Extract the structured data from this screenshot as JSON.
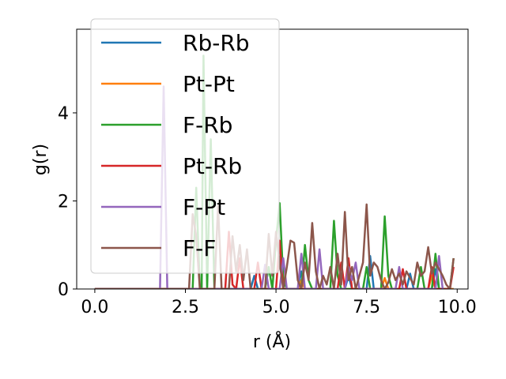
{
  "chart_data": {
    "type": "line",
    "xlabel": "r (Å)",
    "ylabel": "g(r)",
    "xlim": [
      -0.5,
      10.3
    ],
    "ylim": [
      0,
      5.9
    ],
    "xticks": [
      0.0,
      2.5,
      5.0,
      7.5,
      10.0
    ],
    "xtick_labels": [
      "0.0",
      "2.5",
      "5.0",
      "7.5",
      "10.0"
    ],
    "yticks": [
      0,
      2,
      4
    ],
    "ytick_labels": [
      "0",
      "2",
      "4"
    ],
    "grid": false,
    "legend_position": "upper-left",
    "series": [
      {
        "name": "Rb-Rb",
        "color": "#1f77b4",
        "points": [
          [
            0,
            0
          ],
          [
            4.3,
            0
          ],
          [
            4.4,
            0.3
          ],
          [
            4.5,
            0
          ],
          [
            5.6,
            0
          ],
          [
            5.7,
            0.4
          ],
          [
            5.8,
            0
          ],
          [
            6.9,
            0
          ],
          [
            7.0,
            0.3
          ],
          [
            7.1,
            0
          ],
          [
            7.5,
            0
          ],
          [
            7.6,
            0.75
          ],
          [
            7.7,
            0
          ],
          [
            8.6,
            0
          ],
          [
            8.7,
            0.35
          ],
          [
            8.8,
            0
          ],
          [
            9.3,
            0
          ],
          [
            9.4,
            0.45
          ],
          [
            9.5,
            0
          ],
          [
            9.9,
            0
          ]
        ]
      },
      {
        "name": "Pt-Pt",
        "color": "#ff7f0e",
        "points": [
          [
            0,
            0
          ],
          [
            5.6,
            0
          ],
          [
            5.7,
            0.2
          ],
          [
            5.8,
            0
          ],
          [
            7.9,
            0
          ],
          [
            8.0,
            0.25
          ],
          [
            8.1,
            0
          ],
          [
            9.2,
            0
          ],
          [
            9.3,
            0.3
          ],
          [
            9.4,
            0
          ],
          [
            9.9,
            0
          ]
        ]
      },
      {
        "name": "F-Rb",
        "color": "#2ca02c",
        "points": [
          [
            0,
            0
          ],
          [
            2.7,
            0
          ],
          [
            2.8,
            2.3
          ],
          [
            2.9,
            0
          ],
          [
            2.95,
            0
          ],
          [
            3.0,
            5.3
          ],
          [
            3.1,
            0
          ],
          [
            3.2,
            3.4
          ],
          [
            3.3,
            0
          ],
          [
            4.7,
            0
          ],
          [
            4.8,
            0.5
          ],
          [
            4.9,
            0
          ],
          [
            5.0,
            1.1
          ],
          [
            5.1,
            1.95
          ],
          [
            5.2,
            0.2
          ],
          [
            5.3,
            0
          ],
          [
            5.7,
            0
          ],
          [
            5.8,
            1.0
          ],
          [
            5.9,
            0.2
          ],
          [
            6.0,
            0
          ],
          [
            6.5,
            0
          ],
          [
            6.6,
            1.55
          ],
          [
            6.7,
            0.3
          ],
          [
            6.8,
            0
          ],
          [
            7.4,
            0
          ],
          [
            7.5,
            0.5
          ],
          [
            7.6,
            0
          ],
          [
            7.9,
            0
          ],
          [
            8.0,
            1.65
          ],
          [
            8.1,
            0.3
          ],
          [
            8.2,
            0
          ],
          [
            8.9,
            0
          ],
          [
            9.0,
            0.5
          ],
          [
            9.1,
            0
          ],
          [
            9.3,
            0
          ],
          [
            9.4,
            0.8
          ],
          [
            9.5,
            0
          ],
          [
            9.8,
            0
          ],
          [
            9.9,
            0.7
          ]
        ]
      },
      {
        "name": "Pt-Rb",
        "color": "#d62728",
        "points": [
          [
            0,
            0
          ],
          [
            3.6,
            0
          ],
          [
            3.7,
            1.3
          ],
          [
            3.8,
            0.1
          ],
          [
            3.9,
            0
          ],
          [
            4.0,
            0.7
          ],
          [
            4.1,
            0
          ],
          [
            4.4,
            0
          ],
          [
            4.5,
            0.6
          ],
          [
            4.6,
            0
          ],
          [
            5.0,
            0
          ],
          [
            5.1,
            1.1
          ],
          [
            5.2,
            0
          ],
          [
            6.7,
            0
          ],
          [
            6.8,
            0.6
          ],
          [
            6.9,
            0
          ],
          [
            7.0,
            0.7
          ],
          [
            7.1,
            0
          ],
          [
            8.4,
            0
          ],
          [
            8.5,
            0.45
          ],
          [
            8.6,
            0
          ],
          [
            9.2,
            0
          ],
          [
            9.3,
            0.5
          ],
          [
            9.4,
            0
          ],
          [
            9.8,
            0
          ],
          [
            9.9,
            0.5
          ]
        ]
      },
      {
        "name": "F-Pt",
        "color": "#9467bd",
        "points": [
          [
            0,
            0
          ],
          [
            1.8,
            0
          ],
          [
            1.9,
            4.6
          ],
          [
            2.0,
            0
          ],
          [
            4.6,
            0
          ],
          [
            4.7,
            0.55
          ],
          [
            4.8,
            0
          ],
          [
            5.1,
            0
          ],
          [
            5.2,
            0.7
          ],
          [
            5.3,
            0
          ],
          [
            5.6,
            0
          ],
          [
            5.7,
            0.8
          ],
          [
            5.8,
            0
          ],
          [
            6.1,
            0
          ],
          [
            6.2,
            0.9
          ],
          [
            6.3,
            0
          ],
          [
            6.9,
            0
          ],
          [
            7.0,
            0.5
          ],
          [
            7.1,
            0.2
          ],
          [
            7.2,
            0.6
          ],
          [
            7.3,
            0
          ],
          [
            8.3,
            0
          ],
          [
            8.4,
            0.5
          ],
          [
            8.5,
            0
          ],
          [
            9.4,
            0
          ],
          [
            9.5,
            0.75
          ],
          [
            9.6,
            0
          ]
        ]
      },
      {
        "name": "F-F",
        "color": "#8c564b",
        "points": [
          [
            0,
            0
          ],
          [
            2.6,
            0
          ],
          [
            2.7,
            1.7
          ],
          [
            2.8,
            1.2
          ],
          [
            2.9,
            0
          ],
          [
            3.3,
            0
          ],
          [
            3.4,
            1.9
          ],
          [
            3.5,
            0
          ],
          [
            3.7,
            0
          ],
          [
            3.8,
            1.2
          ],
          [
            3.9,
            0.4
          ],
          [
            4.0,
            1.0
          ],
          [
            4.1,
            0.2
          ],
          [
            4.2,
            0.9
          ],
          [
            4.3,
            0
          ],
          [
            4.7,
            0
          ],
          [
            4.8,
            1.25
          ],
          [
            4.9,
            0.3
          ],
          [
            5.0,
            1.3
          ],
          [
            5.1,
            0.6
          ],
          [
            5.2,
            0
          ],
          [
            5.3,
            0.5
          ],
          [
            5.4,
            1.1
          ],
          [
            5.5,
            1.05
          ],
          [
            5.6,
            0.2
          ],
          [
            5.7,
            0
          ],
          [
            5.8,
            0.6
          ],
          [
            5.9,
            0.2
          ],
          [
            6.0,
            1.5
          ],
          [
            6.1,
            0.4
          ],
          [
            6.2,
            0
          ],
          [
            6.3,
            0.3
          ],
          [
            6.4,
            0.1
          ],
          [
            6.5,
            0.5
          ],
          [
            6.6,
            0
          ],
          [
            6.7,
            0.8
          ],
          [
            6.8,
            0.1
          ],
          [
            6.9,
            1.75
          ],
          [
            7.0,
            0.2
          ],
          [
            7.1,
            0.5
          ],
          [
            7.2,
            0
          ],
          [
            7.3,
            0.3
          ],
          [
            7.4,
            0.6
          ],
          [
            7.5,
            1.92
          ],
          [
            7.6,
            0.3
          ],
          [
            7.7,
            0.6
          ],
          [
            7.8,
            0.5
          ],
          [
            7.9,
            0.2
          ],
          [
            8.0,
            0
          ],
          [
            8.1,
            0.15
          ],
          [
            8.2,
            0.45
          ],
          [
            8.3,
            0.2
          ],
          [
            8.4,
            0.35
          ],
          [
            8.5,
            0.1
          ],
          [
            8.6,
            0.4
          ],
          [
            8.7,
            0.25
          ],
          [
            8.8,
            0.1
          ],
          [
            8.9,
            0.6
          ],
          [
            9.0,
            0.3
          ],
          [
            9.1,
            0.4
          ],
          [
            9.2,
            0.95
          ],
          [
            9.3,
            0.35
          ],
          [
            9.4,
            0.6
          ],
          [
            9.5,
            0.45
          ],
          [
            9.6,
            0.3
          ],
          [
            9.7,
            0.1
          ],
          [
            9.8,
            0
          ],
          [
            9.9,
            0.7
          ]
        ]
      }
    ]
  }
}
